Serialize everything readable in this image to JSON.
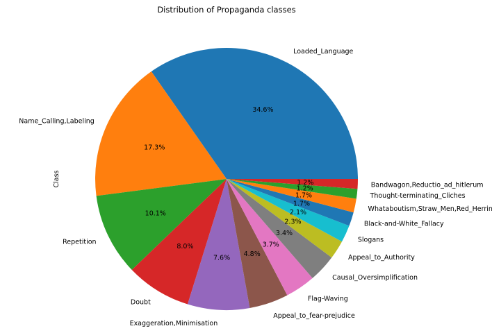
{
  "chart_data": {
    "type": "pie",
    "title": "Distribution of Propaganda classes",
    "ylabel": "Class",
    "start_angle_deg": 0,
    "direction": "counterclockwise",
    "slices": [
      {
        "label": "Loaded_Language",
        "pct_text": "34.6%",
        "value": 34.6,
        "color": "#1f77b4"
      },
      {
        "label": "Name_Calling,Labeling",
        "pct_text": "17.3%",
        "value": 17.3,
        "color": "#ff7f0e"
      },
      {
        "label": "Repetition",
        "pct_text": "10.1%",
        "value": 10.1,
        "color": "#2ca02c"
      },
      {
        "label": "Doubt",
        "pct_text": "8.0%",
        "value": 8.0,
        "color": "#d62728"
      },
      {
        "label": "Exaggeration,Minimisation",
        "pct_text": "7.6%",
        "value": 7.6,
        "color": "#9467bd"
      },
      {
        "label": "Appeal_to_fear-prejudice",
        "pct_text": "4.8%",
        "value": 4.8,
        "color": "#8c564b"
      },
      {
        "label": "Flag-Waving",
        "pct_text": "3.7%",
        "value": 3.7,
        "color": "#e377c2"
      },
      {
        "label": "Causal_Oversimplification",
        "pct_text": "3.4%",
        "value": 3.4,
        "color": "#7f7f7f"
      },
      {
        "label": "Appeal_to_Authority",
        "pct_text": "2.3%",
        "value": 2.3,
        "color": "#bcbd22"
      },
      {
        "label": "Slogans",
        "pct_text": "2.1%",
        "value": 2.1,
        "color": "#17becf"
      },
      {
        "label": "Black-and-White_Fallacy",
        "pct_text": "1.7%",
        "value": 1.7,
        "color": "#1f77b4"
      },
      {
        "label": "Whataboutism,Straw_Men,Red_Herring",
        "pct_text": "1.7%",
        "value": 1.7,
        "color": "#ff7f0e"
      },
      {
        "label": "Thought-terminating_Cliches",
        "pct_text": "1.2%",
        "value": 1.2,
        "color": "#2ca02c"
      },
      {
        "label": "Bandwagon,Reductio_ad_hitlerum",
        "pct_text": "1.2%",
        "value": 1.2,
        "color": "#d62728"
      }
    ]
  }
}
